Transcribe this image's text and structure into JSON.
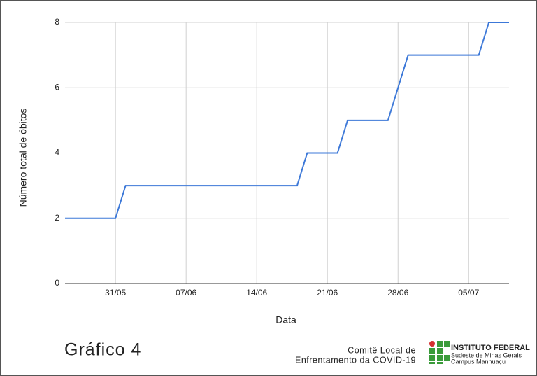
{
  "chart_data": {
    "type": "line",
    "x": [
      "26/05",
      "27/05",
      "28/05",
      "29/05",
      "30/05",
      "31/05",
      "01/06",
      "02/06",
      "03/06",
      "04/06",
      "05/06",
      "06/06",
      "07/06",
      "08/06",
      "09/06",
      "10/06",
      "11/06",
      "12/06",
      "13/06",
      "14/06",
      "15/06",
      "16/06",
      "17/06",
      "18/06",
      "19/06",
      "20/06",
      "21/06",
      "22/06",
      "23/06",
      "24/06",
      "25/06",
      "26/06",
      "27/06",
      "28/06",
      "29/06",
      "30/06",
      "01/07",
      "02/07",
      "03/07",
      "04/07",
      "05/07",
      "06/07",
      "07/07",
      "08/07",
      "09/07"
    ],
    "series": [
      {
        "color": "#3c78d8",
        "values": [
          2,
          2,
          2,
          2,
          2,
          2,
          3,
          3,
          3,
          3,
          3,
          3,
          3,
          3,
          3,
          3,
          3,
          3,
          3,
          3,
          3,
          3,
          3,
          3,
          4,
          4,
          4,
          4,
          5,
          5,
          5,
          5,
          5,
          6,
          7,
          7,
          7,
          7,
          7,
          7,
          7,
          7,
          8,
          8,
          8
        ]
      }
    ],
    "xlim": [
      "26/05",
      "09/07"
    ],
    "xticks": [
      "31/05",
      "07/06",
      "14/06",
      "21/06",
      "28/06",
      "05/07"
    ],
    "ylim": [
      0,
      8
    ],
    "yticks": [
      0,
      2,
      4,
      6,
      8
    ],
    "grid": true,
    "xlabel": "Data",
    "ylabel": "Número total de óbitos"
  },
  "footer": {
    "caption": "Gráfico 4",
    "committee": [
      "Comitê Local de",
      "Enfrentamento da COVID-19"
    ],
    "institute": [
      "INSTITUTO FEDERAL",
      "Sudeste de Minas Gerais",
      "Campus Manhuaçu"
    ]
  }
}
